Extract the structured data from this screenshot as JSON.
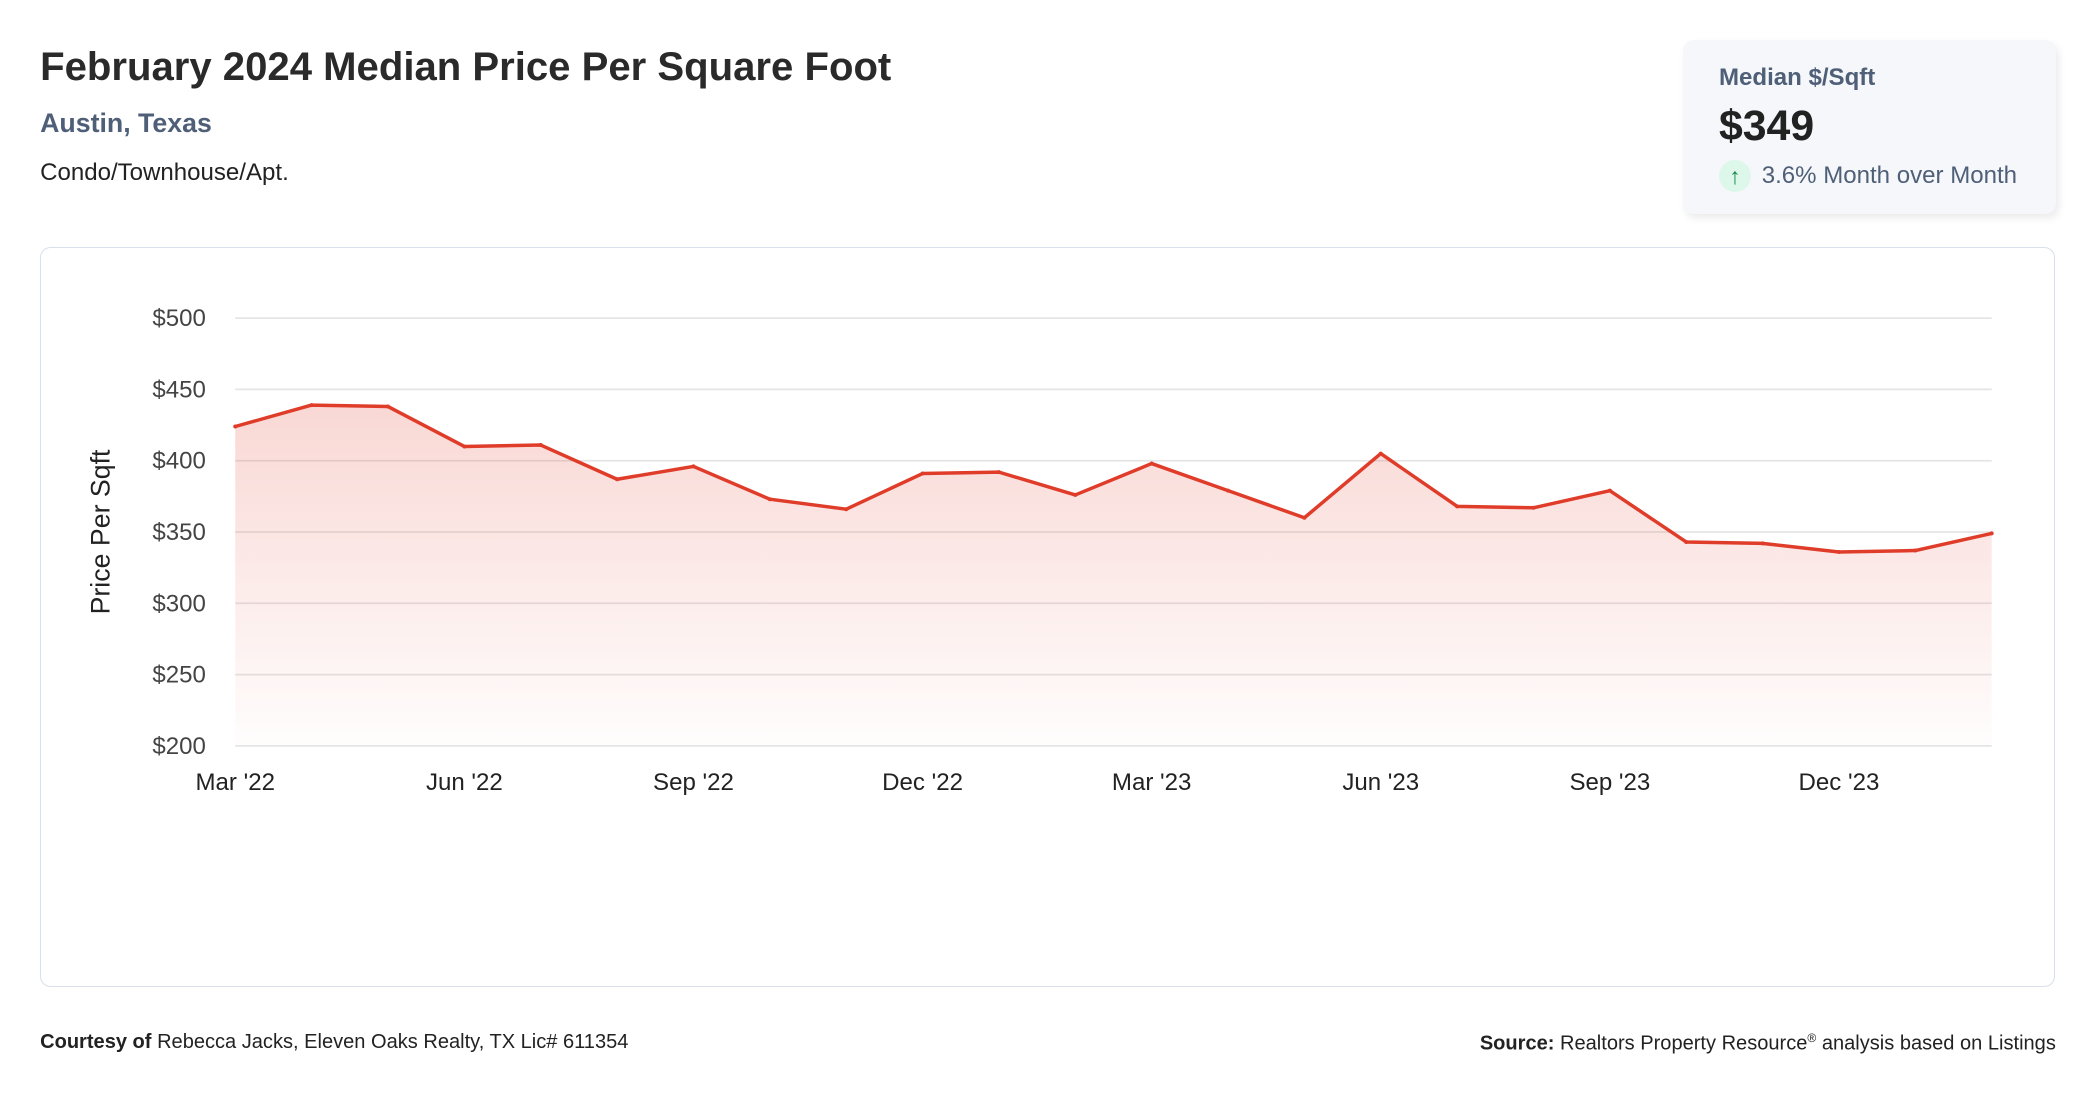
{
  "header": {
    "title": "February 2024 Median Price Per Square Foot",
    "location": "Austin, Texas",
    "property_type": "Condo/Townhouse/Apt."
  },
  "kpi": {
    "label": "Median $/Sqft",
    "value": "$349",
    "change": "3.6% Month over Month",
    "direction_icon": "arrow-up-icon"
  },
  "footer": {
    "courtesy_label": "Courtesy of",
    "courtesy_text": "Rebecca Jacks, Eleven Oaks Realty, TX Lic# 611354",
    "source_label": "Source:",
    "source_text": "Realtors Property Resource",
    "source_sup": "®",
    "source_suffix": " analysis based on Listings"
  },
  "colors": {
    "line": "#e03c2a",
    "accent_text": "#4f5f78",
    "up": "#1a8a4a"
  },
  "chart_data": {
    "type": "area",
    "title": "February 2024 Median Price Per Square Foot",
    "ylabel": "Price Per Sqft",
    "xlabel": "",
    "ylim": [
      200,
      500
    ],
    "yticks": [
      500,
      450,
      400,
      350,
      300,
      250,
      200
    ],
    "ytick_labels": [
      "$500",
      "$450",
      "$400",
      "$350",
      "$300",
      "$250",
      "$200"
    ],
    "x": [
      "Mar '22",
      "Apr '22",
      "May '22",
      "Jun '22",
      "Jul '22",
      "Aug '22",
      "Sep '22",
      "Oct '22",
      "Nov '22",
      "Dec '22",
      "Jan '23",
      "Feb '23",
      "Mar '23",
      "Apr '23",
      "May '23",
      "Jun '23",
      "Jul '23",
      "Aug '23",
      "Sep '23",
      "Oct '23",
      "Nov '23",
      "Dec '23",
      "Jan '24",
      "Feb '24"
    ],
    "xtick_labels": [
      "Mar '22",
      "Jun '22",
      "Sep '22",
      "Dec '22",
      "Mar '23",
      "Jun '23",
      "Sep '23",
      "Dec '23"
    ],
    "values": [
      424,
      439,
      438,
      410,
      411,
      387,
      396,
      373,
      366,
      391,
      392,
      376,
      398,
      379,
      360,
      405,
      368,
      367,
      379,
      343,
      342,
      336,
      337,
      349
    ],
    "grid": true,
    "legend": "none"
  }
}
